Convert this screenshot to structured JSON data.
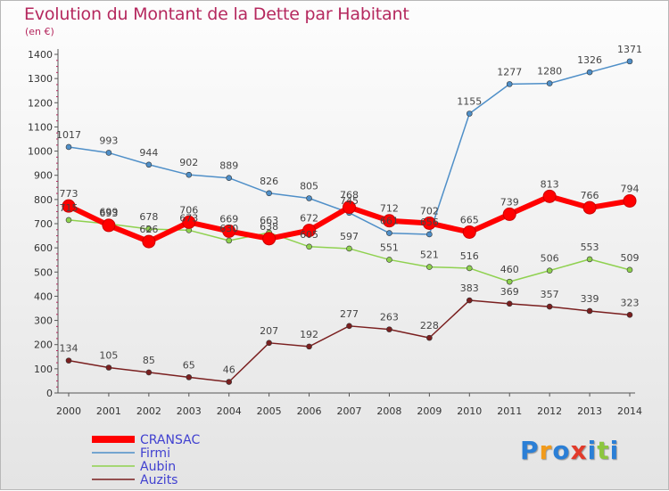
{
  "chart": {
    "title": "Evolution du Montant de la Dette par Habitant",
    "subtitle": "(en €)",
    "logo_text": "Proxiti"
  },
  "chart_data": {
    "type": "line",
    "title": "Evolution du Montant de la Dette par Habitant",
    "subtitle": "(en €)",
    "xlabel": "",
    "ylabel": "",
    "x": [
      "2000",
      "2001",
      "2002",
      "2003",
      "2004",
      "2005",
      "2006",
      "2007",
      "2008",
      "2009",
      "2010",
      "2011",
      "2012",
      "2013",
      "2014"
    ],
    "ylim": [
      0,
      1400
    ],
    "yticks": [
      0,
      100,
      200,
      300,
      400,
      500,
      600,
      700,
      800,
      900,
      1000,
      1100,
      1200,
      1300,
      1400
    ],
    "grid": false,
    "legend_position": "bottom-left",
    "series": [
      {
        "name": "CRANSAC",
        "color": "#ff0000",
        "values": [
          773,
          693,
          626,
          706,
          669,
          638,
          672,
          768,
          712,
          702,
          665,
          739,
          813,
          766,
          794
        ]
      },
      {
        "name": "Firmi",
        "color": "#4f8fc8",
        "values": [
          1017,
          993,
          944,
          902,
          889,
          826,
          805,
          745,
          661,
          656,
          1155,
          1277,
          1280,
          1326,
          1371
        ]
      },
      {
        "name": "Aubin",
        "color": "#8fd14f",
        "values": [
          715,
          699,
          678,
          673,
          630,
          663,
          605,
          597,
          551,
          521,
          516,
          460,
          506,
          553,
          509
        ]
      },
      {
        "name": "Auzits",
        "color": "#7a1f1f",
        "values": [
          134,
          105,
          85,
          65,
          46,
          207,
          192,
          277,
          263,
          228,
          383,
          369,
          357,
          339,
          323
        ]
      }
    ]
  }
}
